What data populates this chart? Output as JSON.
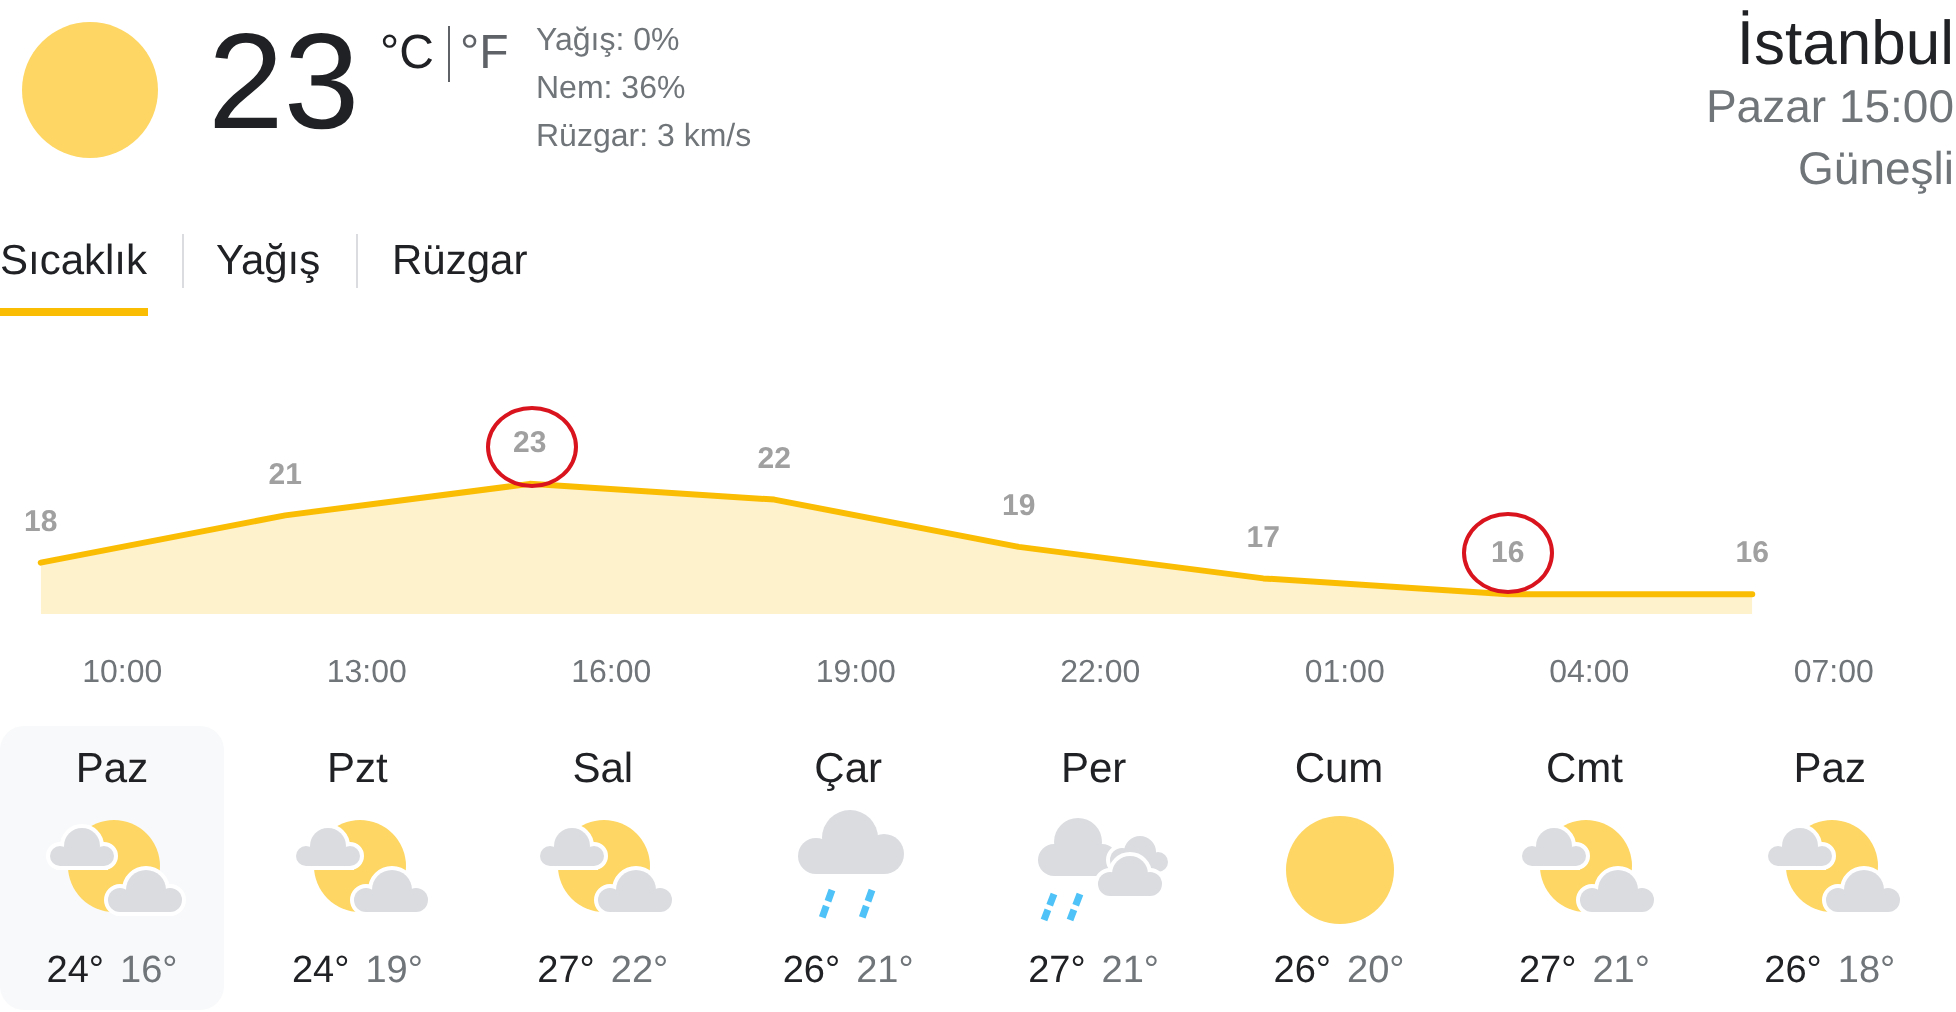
{
  "chart_data": [
    {
      "type": "other",
      "title": "İstanbul",
      "annotations": [
        "23",
        "°C",
        "°F",
        "Yağış: 0%",
        "Nem: 36%",
        "Rüzgar: 3 km/s",
        "Pazar 15:00",
        "Güneşli",
        "Sıcaklık",
        "Yağış",
        "Rüzgar"
      ]
    },
    {
      "type": "area",
      "categories": [
        null,
        "10:00",
        null,
        null,
        "13:00",
        null,
        null,
        "16:00",
        null,
        null,
        "19:00",
        null,
        null,
        "22:00",
        null,
        null,
        "01:00",
        null,
        null,
        "04:00",
        null,
        null,
        "07:00",
        null
      ],
      "values": [
        18,
        null,
        null,
        21,
        null,
        null,
        23,
        null,
        null,
        22,
        null,
        null,
        19,
        null,
        null,
        17,
        null,
        null,
        16,
        null,
        null,
        16,
        null,
        null
      ],
      "color": "#fbbc04",
      "tick_labels": "x",
      "data_labels": true
    },
    {
      "type": "other",
      "annotations": [
        "Paz",
        "24°",
        "16°",
        "Pzt",
        "24°",
        "19°",
        "Sal",
        "27°",
        "22°",
        "Çar",
        "26°",
        "21°",
        "Per",
        "27°",
        "21°",
        "Cum",
        "26°",
        "20°",
        "Cmt",
        "27°",
        "21°",
        "Paz",
        "26°",
        "18°"
      ]
    }
  ]
}
